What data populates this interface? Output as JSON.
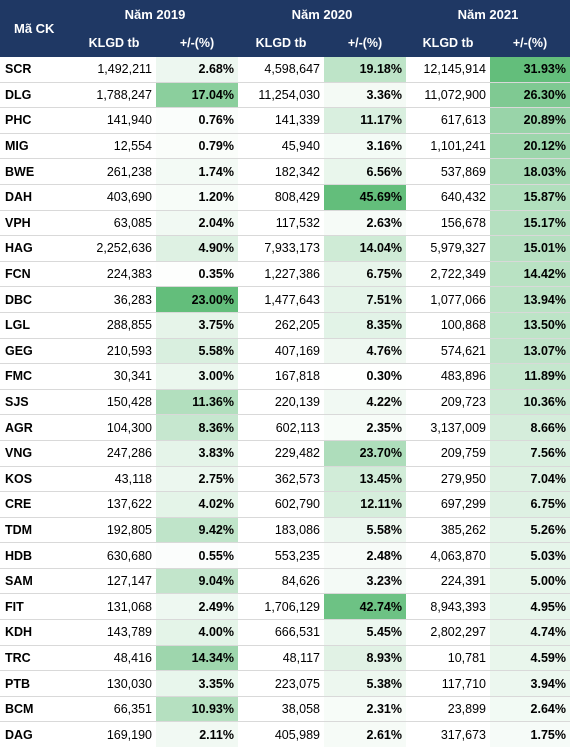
{
  "header": {
    "ticker": "Mã CK",
    "years": [
      "Năm 2019",
      "Năm 2020",
      "Năm 2021"
    ],
    "vol_label": "KLGD tb",
    "pct_label": "+/-(%)"
  },
  "rows": [
    {
      "t": "SCR",
      "v19": "1,492,211",
      "p19": "2.68%",
      "v20": "4,598,647",
      "p20": "19.18%",
      "v21": "12,145,914",
      "p21": "31.93%"
    },
    {
      "t": "DLG",
      "v19": "1,788,247",
      "p19": "17.04%",
      "v20": "11,254,030",
      "p20": "3.36%",
      "v21": "11,072,900",
      "p21": "26.30%"
    },
    {
      "t": "PHC",
      "v19": "141,940",
      "p19": "0.76%",
      "v20": "141,339",
      "p20": "11.17%",
      "v21": "617,613",
      "p21": "20.89%"
    },
    {
      "t": "MIG",
      "v19": "12,554",
      "p19": "0.79%",
      "v20": "45,940",
      "p20": "3.16%",
      "v21": "1,101,241",
      "p21": "20.12%"
    },
    {
      "t": "BWE",
      "v19": "261,238",
      "p19": "1.74%",
      "v20": "182,342",
      "p20": "6.56%",
      "v21": "537,869",
      "p21": "18.03%"
    },
    {
      "t": "DAH",
      "v19": "403,690",
      "p19": "1.20%",
      "v20": "808,429",
      "p20": "45.69%",
      "v21": "640,432",
      "p21": "15.87%"
    },
    {
      "t": "VPH",
      "v19": "63,085",
      "p19": "2.04%",
      "v20": "117,532",
      "p20": "2.63%",
      "v21": "156,678",
      "p21": "15.17%"
    },
    {
      "t": "HAG",
      "v19": "2,252,636",
      "p19": "4.90%",
      "v20": "7,933,173",
      "p20": "14.04%",
      "v21": "5,979,327",
      "p21": "15.01%"
    },
    {
      "t": "FCN",
      "v19": "224,383",
      "p19": "0.35%",
      "v20": "1,227,386",
      "p20": "6.75%",
      "v21": "2,722,349",
      "p21": "14.42%"
    },
    {
      "t": "DBC",
      "v19": "36,283",
      "p19": "23.00%",
      "v20": "1,477,643",
      "p20": "7.51%",
      "v21": "1,077,066",
      "p21": "13.94%"
    },
    {
      "t": "LGL",
      "v19": "288,855",
      "p19": "3.75%",
      "v20": "262,205",
      "p20": "8.35%",
      "v21": "100,868",
      "p21": "13.50%"
    },
    {
      "t": "GEG",
      "v19": "210,593",
      "p19": "5.58%",
      "v20": "407,169",
      "p20": "4.76%",
      "v21": "574,621",
      "p21": "13.07%"
    },
    {
      "t": "FMC",
      "v19": "30,341",
      "p19": "3.00%",
      "v20": "167,818",
      "p20": "0.30%",
      "v21": "483,896",
      "p21": "11.89%"
    },
    {
      "t": "SJS",
      "v19": "150,428",
      "p19": "11.36%",
      "v20": "220,139",
      "p20": "4.22%",
      "v21": "209,723",
      "p21": "10.36%"
    },
    {
      "t": "AGR",
      "v19": "104,300",
      "p19": "8.36%",
      "v20": "602,113",
      "p20": "2.35%",
      "v21": "3,137,009",
      "p21": "8.66%"
    },
    {
      "t": "VNG",
      "v19": "247,286",
      "p19": "3.83%",
      "v20": "229,482",
      "p20": "23.70%",
      "v21": "209,759",
      "p21": "7.56%"
    },
    {
      "t": "KOS",
      "v19": "43,118",
      "p19": "2.75%",
      "v20": "362,573",
      "p20": "13.45%",
      "v21": "279,950",
      "p21": "7.04%"
    },
    {
      "t": "CRE",
      "v19": "137,622",
      "p19": "4.02%",
      "v20": "602,790",
      "p20": "12.11%",
      "v21": "697,299",
      "p21": "6.75%"
    },
    {
      "t": "TDM",
      "v19": "192,805",
      "p19": "9.42%",
      "v20": "183,086",
      "p20": "5.58%",
      "v21": "385,262",
      "p21": "5.26%"
    },
    {
      "t": "HDB",
      "v19": "630,680",
      "p19": "0.55%",
      "v20": "553,235",
      "p20": "2.48%",
      "v21": "4,063,870",
      "p21": "5.03%"
    },
    {
      "t": "SAM",
      "v19": "127,147",
      "p19": "9.04%",
      "v20": "84,626",
      "p20": "3.23%",
      "v21": "224,391",
      "p21": "5.00%"
    },
    {
      "t": "FIT",
      "v19": "131,068",
      "p19": "2.49%",
      "v20": "1,706,129",
      "p20": "42.74%",
      "v21": "8,943,393",
      "p21": "4.95%"
    },
    {
      "t": "KDH",
      "v19": "143,789",
      "p19": "4.00%",
      "v20": "666,531",
      "p20": "5.45%",
      "v21": "2,802,297",
      "p21": "4.74%"
    },
    {
      "t": "TRC",
      "v19": "48,416",
      "p19": "14.34%",
      "v20": "48,117",
      "p20": "8.93%",
      "v21": "10,781",
      "p21": "4.59%"
    },
    {
      "t": "PTB",
      "v19": "130,030",
      "p19": "3.35%",
      "v20": "223,075",
      "p20": "5.38%",
      "v21": "117,710",
      "p21": "3.94%"
    },
    {
      "t": "BCM",
      "v19": "66,351",
      "p19": "10.93%",
      "v20": "38,058",
      "p20": "2.31%",
      "v21": "23,899",
      "p21": "2.64%"
    },
    {
      "t": "DAG",
      "v19": "169,190",
      "p19": "2.11%",
      "v20": "405,989",
      "p20": "2.61%",
      "v21": "317,673",
      "p21": "1.75%"
    }
  ]
}
